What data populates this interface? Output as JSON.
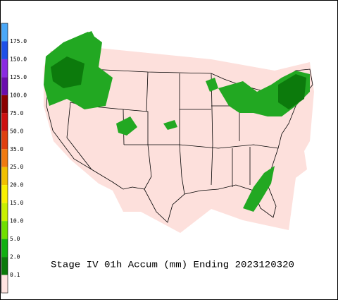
{
  "legend": {
    "labels": [
      "175.0",
      "150.0",
      "125.0",
      "100.0",
      "75.0",
      "50.0",
      "35.0",
      "25.0",
      "20.0",
      "15.0",
      "10.0",
      "5.0",
      "2.0",
      "0.1"
    ],
    "colors": [
      "#4aa8f8",
      "#1e50e8",
      "#8a2be2",
      "#6a0dad",
      "#8b0000",
      "#cc1010",
      "#e04010",
      "#f07a10",
      "#f0c000",
      "#f8f000",
      "#c8f000",
      "#70e000",
      "#10b010",
      "#0a7a0a",
      "#ffe4e1"
    ]
  },
  "caption": "Stage IV 01h Accum (mm) Ending 2023120320"
}
